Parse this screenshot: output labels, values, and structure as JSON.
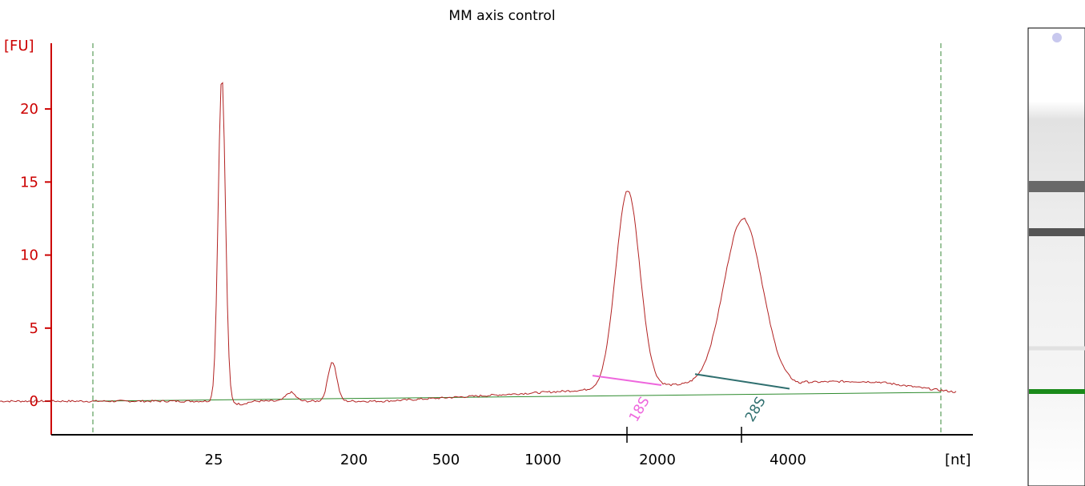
{
  "chart_data": {
    "type": "line",
    "title": "MM axis control",
    "y_unit": "[FU]",
    "x_unit": "[nt]",
    "y_ticks": [
      0,
      5,
      10,
      15,
      20
    ],
    "ylim": [
      -2.3,
      24.5
    ],
    "x_scale": "log",
    "x_ticks": [
      25,
      200,
      500,
      1000,
      2000,
      4000
    ],
    "colors": {
      "axis": "#cc0000",
      "trace": "#b22222",
      "baseline": "#2e8b2e",
      "marker_18s": "#ee66dd",
      "marker_28s": "#2f6f6f",
      "window": "#3a8a3a"
    },
    "peaks": [
      {
        "label": "18S",
        "color": "#ee66dd"
      },
      {
        "label": "28S",
        "color": "#2f6f6f"
      }
    ],
    "gel": {
      "bands": [
        {
          "position": "upper",
          "intensity": 0.75
        },
        {
          "position": "middle",
          "intensity": 0.85
        },
        {
          "position": "lower",
          "intensity": 0.15
        },
        {
          "position": "marker",
          "intensity": 1.0,
          "color": "#1a8a1a"
        }
      ]
    }
  }
}
